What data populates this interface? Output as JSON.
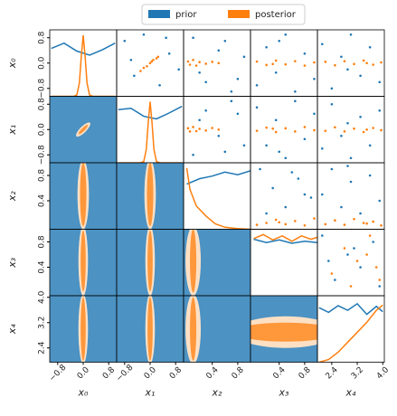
{
  "chart_data": {
    "type": "corner",
    "legend": {
      "loc": "upper center"
    },
    "series": [
      {
        "name": "prior",
        "color": "#1f77b4"
      },
      {
        "name": "posterior",
        "color": "#ff7f0e"
      }
    ],
    "variables": [
      {
        "label": "x₀",
        "lim": [
          -1.05,
          1.05
        ],
        "ticks": [
          {
            "value": -0.8,
            "label": "−0.8"
          },
          {
            "value": 0,
            "label": "0.0"
          },
          0.8
        ]
      },
      {
        "label": "x₁",
        "lim": [
          -1.05,
          1.05
        ],
        "ticks": [
          {
            "value": -0.8,
            "label": "−0.8"
          },
          {
            "value": 0,
            "label": "0.0"
          },
          0.8
        ]
      },
      {
        "label": "x₂",
        "lim": [
          -0.05,
          1.0
        ],
        "ticks": [
          0.4,
          0.8
        ]
      },
      {
        "label": "x₃",
        "lim": [
          -0.05,
          1.0
        ],
        "ticks": [
          0.4,
          0.8
        ]
      },
      {
        "label": "x₄",
        "lim": [
          1.95,
          4.05
        ],
        "ticks": [
          2.4,
          3.2,
          {
            "value": 4,
            "label": "4.0"
          }
        ]
      }
    ],
    "diagonal": [
      {
        "prior": {
          "x": [
            -1,
            -0.6,
            -0.2,
            0.2,
            0.6,
            1
          ],
          "y": [
            0.72,
            0.8,
            0.68,
            0.62,
            0.7,
            0.8
          ]
        },
        "posterior": {
          "x": [
            -1,
            -0.3,
            -0.2,
            -0.12,
            -0.06,
            0,
            0.06,
            0.12,
            0.2,
            0.3,
            1
          ],
          "y": [
            0,
            0,
            0.02,
            0.2,
            0.6,
            0.92,
            0.6,
            0.2,
            0.02,
            0,
            0
          ]
        }
      },
      {
        "prior": {
          "x": [
            -1,
            -0.6,
            -0.2,
            0.2,
            0.6,
            1
          ],
          "y": [
            0.8,
            0.82,
            0.7,
            0.66,
            0.75,
            0.85
          ]
        },
        "posterior": {
          "x": [
            -1,
            -0.3,
            -0.2,
            -0.12,
            -0.06,
            0,
            0.06,
            0.12,
            0.2,
            0.3,
            1
          ],
          "y": [
            0,
            0,
            0.02,
            0.2,
            0.6,
            0.92,
            0.6,
            0.2,
            0.02,
            0,
            0
          ]
        }
      },
      {
        "prior": {
          "x": [
            0,
            0.2,
            0.4,
            0.6,
            0.8,
            1
          ],
          "y": [
            0.68,
            0.76,
            0.8,
            0.86,
            0.82,
            0.88
          ]
        },
        "posterior": {
          "x": [
            0,
            0.05,
            0.15,
            0.3,
            0.45,
            0.6,
            0.8,
            1
          ],
          "y": [
            0.92,
            0.6,
            0.35,
            0.2,
            0.08,
            0.03,
            0.01,
            0
          ]
        }
      },
      {
        "prior": {
          "x": [
            0,
            0.2,
            0.4,
            0.6,
            0.8,
            1
          ],
          "y": [
            0.85,
            0.8,
            0.84,
            0.79,
            0.82,
            0.8
          ]
        },
        "posterior": {
          "x": [
            0,
            0.15,
            0.3,
            0.45,
            0.6,
            0.75,
            0.9,
            1
          ],
          "y": [
            0.86,
            0.92,
            0.84,
            0.9,
            0.82,
            0.9,
            0.85,
            0.88
          ]
        }
      },
      {
        "prior": {
          "x": [
            2,
            2.3,
            2.6,
            2.9,
            3.2,
            3.5,
            3.8,
            4
          ],
          "y": [
            0.82,
            0.75,
            0.85,
            0.78,
            0.88,
            0.72,
            0.84,
            0.76
          ]
        },
        "posterior": {
          "x": [
            2,
            2.3,
            2.6,
            2.9,
            3.2,
            3.5,
            3.8,
            4
          ],
          "y": [
            0,
            0.04,
            0.15,
            0.3,
            0.45,
            0.6,
            0.78,
            0.86
          ]
        }
      }
    ],
    "upper": [
      {
        "prior": {
          "x": [
            -0.8,
            -0.5,
            -0.2,
            0.3,
            0.6,
            0.9,
            -0.6,
            0.5
          ],
          "y": [
            0.7,
            -0.4,
            0.9,
            -0.7,
            0.3,
            -0.2,
            0.1,
            0.8
          ]
        },
        "posterior": {
          "x": [
            -0.3,
            -0.2,
            -0.1,
            0,
            0.05,
            0.1,
            0.2,
            0.25
          ],
          "y": [
            -0.25,
            -0.15,
            -0.1,
            0,
            0.05,
            0.1,
            0.15,
            0.2
          ]
        }
      },
      {
        "prior": {
          "x": [
            0.1,
            0.3,
            0.5,
            0.7,
            0.9,
            0.2,
            0.6,
            0.8
          ],
          "y": [
            0.8,
            -0.6,
            0.4,
            -0.9,
            0.2,
            -0.3,
            0.7,
            -0.5
          ]
        },
        "posterior": {
          "x": [
            0.02,
            0.05,
            0.1,
            0.15,
            0.2,
            0.3,
            0.4,
            0.5
          ],
          "y": [
            0.05,
            -0.05,
            0.1,
            -0.08,
            0.03,
            -0.02,
            0.04,
            0
          ]
        }
      },
      {
        "prior": {
          "x": [
            0.05,
            0.2,
            0.35,
            0.5,
            0.65,
            0.8,
            0.95,
            0.4
          ],
          "y": [
            -0.7,
            0.5,
            -0.3,
            0.9,
            -0.9,
            0.3,
            -0.5,
            0.7
          ]
        },
        "posterior": {
          "x": [
            0.05,
            0.2,
            0.35,
            0.5,
            0.65,
            0.8,
            0.95,
            0.3
          ],
          "y": [
            0.05,
            -0.06,
            0.08,
            -0.04,
            0.06,
            -0.08,
            0.02,
            -0.03
          ]
        }
      },
      {
        "prior": {
          "x": [
            2.1,
            2.4,
            2.7,
            3,
            3.3,
            3.6,
            3.9,
            2.9
          ],
          "y": [
            0.6,
            -0.8,
            0.2,
            0.9,
            -0.4,
            0.5,
            -0.6,
            -0.2
          ]
        },
        "posterior": {
          "x": [
            2.2,
            2.5,
            2.8,
            3.1,
            3.4,
            3.7,
            3.95,
            3.5
          ],
          "y": [
            0.04,
            -0.07,
            0.06,
            -0.03,
            0.08,
            -0.05,
            0.02,
            0
          ]
        }
      },
      {
        "prior": {
          "x": [
            0.1,
            0.3,
            0.5,
            0.7,
            0.9,
            0.2,
            0.6,
            0.8
          ],
          "y": [
            -0.8,
            0.6,
            -0.2,
            0.9,
            -0.5,
            0.3,
            -0.7,
            0.5
          ]
        },
        "posterior": {
          "x": [
            0.02,
            0.05,
            0.1,
            0.15,
            0.2,
            0.3,
            0.4,
            0.5
          ],
          "y": [
            0.04,
            -0.06,
            0.08,
            -0.05,
            0.02,
            -0.03,
            0.05,
            0
          ]
        }
      },
      {
        "prior": {
          "x": [
            0.05,
            0.2,
            0.35,
            0.5,
            0.65,
            0.8,
            0.95,
            0.4
          ],
          "y": [
            0.7,
            -0.5,
            0.3,
            -0.9,
            0.9,
            -0.3,
            0.5,
            -0.7
          ]
        },
        "posterior": {
          "x": [
            0.05,
            0.2,
            0.35,
            0.5,
            0.65,
            0.8,
            0.95,
            0.3
          ],
          "y": [
            -0.04,
            0.06,
            -0.08,
            0.04,
            -0.06,
            0.08,
            -0.02,
            0.03
          ]
        }
      },
      {
        "prior": {
          "x": [
            2.1,
            2.4,
            2.7,
            3,
            3.3,
            3.6,
            3.9,
            2.9
          ],
          "y": [
            -0.6,
            0.8,
            -0.2,
            -0.9,
            0.4,
            -0.5,
            0.6,
            0.2
          ]
        },
        "posterior": {
          "x": [
            2.2,
            2.5,
            2.8,
            3.1,
            3.4,
            3.7,
            3.95,
            3.5
          ],
          "y": [
            -0.04,
            0.07,
            -0.06,
            0.03,
            -0.08,
            0.05,
            -0.02,
            0
          ]
        }
      },
      {
        "prior": {
          "x": [
            0.1,
            0.3,
            0.5,
            0.7,
            0.9,
            0.2,
            0.6,
            0.8
          ],
          "y": [
            0.9,
            0.6,
            0.3,
            0.75,
            0.45,
            0.2,
            0.85,
            0.5
          ]
        },
        "posterior": {
          "x": [
            0.05,
            0.2,
            0.35,
            0.5,
            0.65,
            0.8,
            0.95,
            0.4
          ],
          "y": [
            0.02,
            0.05,
            0.1,
            0.03,
            0.08,
            0.01,
            0.12,
            0.06
          ]
        }
      },
      {
        "prior": {
          "x": [
            2.1,
            2.4,
            2.7,
            3,
            3.3,
            3.6,
            3.9,
            2.9
          ],
          "y": [
            0.5,
            0.9,
            0.3,
            0.7,
            0.2,
            0.8,
            0.4,
            0.95
          ]
        },
        "posterior": {
          "x": [
            2.2,
            2.5,
            2.8,
            3.1,
            3.4,
            3.7,
            3.95,
            3.5
          ],
          "y": [
            0.03,
            0.09,
            0.02,
            0.11,
            0.05,
            0.07,
            0.01,
            0.04
          ]
        }
      },
      {
        "prior": {
          "x": [
            2.1,
            2.5,
            2.9,
            3.3,
            3.7,
            3.9,
            2.3,
            3.1
          ],
          "y": [
            0.9,
            0.2,
            0.6,
            0.4,
            0.8,
            0.1,
            0.5,
            0.7
          ]
        },
        "posterior": {
          "x": [
            2.4,
            2.8,
            3.2,
            3.6,
            3.9,
            3,
            3.5,
            3.8
          ],
          "y": [
            0.3,
            0.7,
            0.5,
            0.9,
            0.2,
            0.1,
            0.6,
            0.4
          ]
        }
      }
    ],
    "lower": [
      {
        "posterior": [
          {
            "cx": 0,
            "cy": 0,
            "rx": 0.3,
            "ry": 0.1,
            "angle": 45
          },
          {
            "cx": 0,
            "cy": 0,
            "rx": 0.2,
            "ry": 0.05,
            "angle": 45
          }
        ]
      },
      {
        "posterior": [
          {
            "cx": 0,
            "cy": 0.5,
            "rx": 0.18,
            "ry": 0.55,
            "angle": 0
          },
          {
            "cx": 0,
            "cy": 0.5,
            "rx": 0.1,
            "ry": 0.5,
            "angle": 0
          }
        ]
      },
      {
        "posterior": [
          {
            "cx": 0,
            "cy": 0.5,
            "rx": 0.18,
            "ry": 0.55,
            "angle": 0
          },
          {
            "cx": 0,
            "cy": 0.5,
            "rx": 0.1,
            "ry": 0.5,
            "angle": 0
          }
        ]
      },
      {
        "posterior": [
          {
            "cx": 0,
            "cy": 0.5,
            "rx": 0.15,
            "ry": 0.55,
            "angle": 0
          },
          {
            "cx": 0,
            "cy": 0.5,
            "rx": 0.08,
            "ry": 0.48,
            "angle": 0
          }
        ]
      },
      {
        "posterior": [
          {
            "cx": 0,
            "cy": 0.5,
            "rx": 0.15,
            "ry": 0.55,
            "angle": 0
          },
          {
            "cx": 0,
            "cy": 0.5,
            "rx": 0.08,
            "ry": 0.48,
            "angle": 0
          }
        ]
      },
      {
        "posterior": [
          {
            "cx": 0.1,
            "cy": 0.5,
            "rx": 0.12,
            "ry": 0.55,
            "angle": 0
          },
          {
            "cx": 0.1,
            "cy": 0.5,
            "rx": 0.05,
            "ry": 0.5,
            "angle": 0
          }
        ]
      },
      {
        "posterior": [
          {
            "cx": 0,
            "cy": 3,
            "rx": 0.15,
            "ry": 1.1,
            "angle": 0
          },
          {
            "cx": 0,
            "cy": 3,
            "rx": 0.08,
            "ry": 1,
            "angle": 0
          }
        ]
      },
      {
        "posterior": [
          {
            "cx": 0,
            "cy": 3,
            "rx": 0.15,
            "ry": 1.1,
            "angle": 0
          },
          {
            "cx": 0,
            "cy": 3,
            "rx": 0.08,
            "ry": 1,
            "angle": 0
          }
        ]
      },
      {
        "posterior": [
          {
            "cx": 0.1,
            "cy": 3,
            "rx": 0.12,
            "ry": 1.1,
            "angle": 0
          },
          {
            "cx": 0.1,
            "cy": 3,
            "rx": 0.05,
            "ry": 1,
            "angle": 0
          }
        ]
      },
      {
        "posterior": [
          {
            "cx": 0.5,
            "cy": 2.9,
            "rx": 0.8,
            "ry": 0.5,
            "angle": 0
          },
          {
            "cx": 0.5,
            "cy": 2.9,
            "rx": 0.8,
            "ry": 0.3,
            "angle": 0
          }
        ]
      }
    ]
  }
}
